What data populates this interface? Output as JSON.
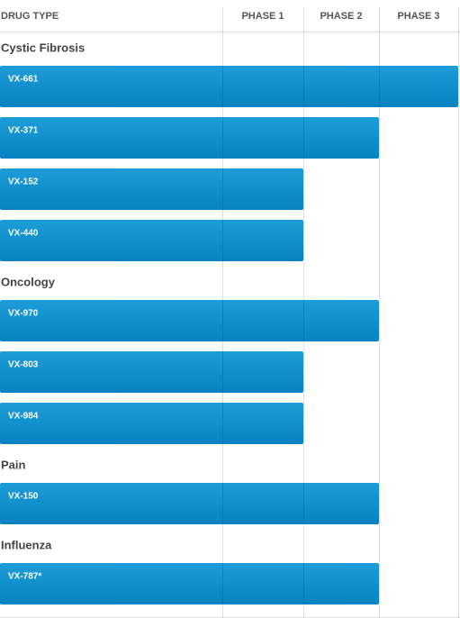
{
  "header": {
    "label": "DRUG TYPE",
    "phases": [
      "PHASE 1",
      "PHASE 2",
      "PHASE 3"
    ]
  },
  "groups": [
    {
      "name": "Cystic Fibrosis",
      "drugs": [
        {
          "name": "VX-661",
          "phase": 3
        },
        {
          "name": "VX-371",
          "phase": 2
        },
        {
          "name": "VX-152",
          "phase": 1
        },
        {
          "name": "VX-440",
          "phase": 1
        }
      ]
    },
    {
      "name": "Oncology",
      "drugs": [
        {
          "name": "VX-970",
          "phase": 2
        },
        {
          "name": "VX-803",
          "phase": 1
        },
        {
          "name": "VX-984",
          "phase": 1
        }
      ]
    },
    {
      "name": "Pain",
      "drugs": [
        {
          "name": "VX-150",
          "phase": 2
        }
      ]
    },
    {
      "name": "Influenza",
      "drugs": [
        {
          "name": "VX-787*",
          "phase": 2
        }
      ]
    }
  ]
}
